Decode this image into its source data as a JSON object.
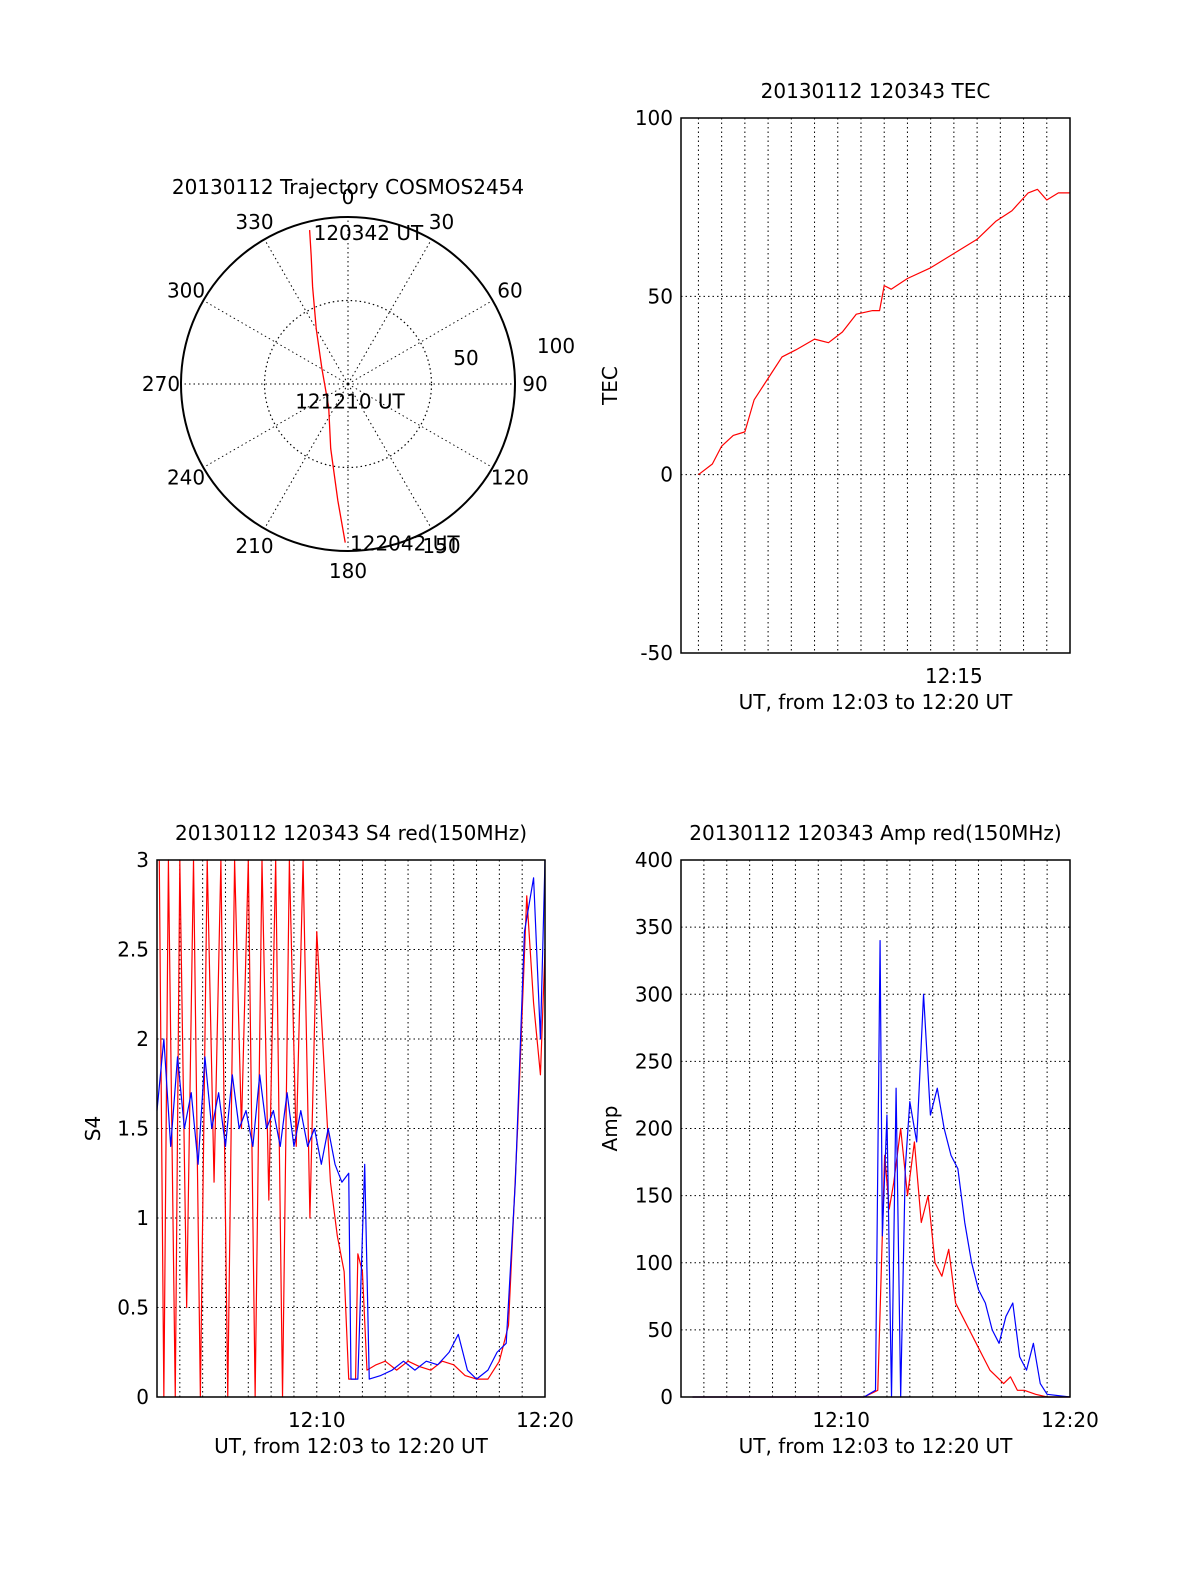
{
  "chart_data": [
    {
      "type": "polar",
      "title": "20130112 Trajectory COSMOS2454",
      "angle_labels": [
        "0",
        "30",
        "60",
        "90",
        "120",
        "150",
        "180",
        "210",
        "240",
        "270",
        "300",
        "330"
      ],
      "radius_labels": [
        "50",
        "100"
      ],
      "series": [
        {
          "color": "#ff0000",
          "points": [
            {
              "azimuth": 346,
              "zenith": 95
            },
            {
              "azimuth": 344,
              "zenith": 80
            },
            {
              "azimuth": 340,
              "zenith": 62
            },
            {
              "azimuth": 330,
              "zenith": 38
            },
            {
              "azimuth": 300,
              "zenith": 18
            },
            {
              "azimuth": 220,
              "zenith": 18
            },
            {
              "azimuth": 195,
              "zenith": 40
            },
            {
              "azimuth": 185,
              "zenith": 70
            },
            {
              "azimuth": 181,
              "zenith": 95
            }
          ]
        }
      ],
      "annotations": [
        {
          "text": "120342 UT",
          "azimuth": 346,
          "zenith": 95
        },
        {
          "text": "121210 UT",
          "azimuth": 230,
          "zenith": 10
        },
        {
          "text": "122042 UT",
          "azimuth": 180,
          "zenith": 95
        }
      ]
    },
    {
      "type": "line",
      "title": "20130112 120343 TEC",
      "ylabel": "TEC",
      "xlabel": "UT, from 12:03 to 12:20 UT",
      "ylim": [
        -50,
        100
      ],
      "yticks": [
        -50,
        0,
        50,
        100
      ],
      "xlim_min": [
        3.25,
        20
      ],
      "xticks": [
        {
          "value": 15,
          "label": "12:15"
        }
      ],
      "grid": true,
      "series": [
        {
          "color": "#ff0000",
          "points": [
            [
              4,
              0
            ],
            [
              4.6,
              3
            ],
            [
              5,
              8
            ],
            [
              5.5,
              11
            ],
            [
              6,
              12
            ],
            [
              6.4,
              21
            ],
            [
              7,
              27
            ],
            [
              7.6,
              33
            ],
            [
              8.2,
              35
            ],
            [
              9,
              38
            ],
            [
              9.6,
              37
            ],
            [
              10.2,
              40
            ],
            [
              10.8,
              45
            ],
            [
              11.5,
              46
            ],
            [
              11.8,
              46
            ],
            [
              12.0,
              53
            ],
            [
              12.3,
              52
            ],
            [
              13,
              55
            ],
            [
              14,
              58
            ],
            [
              15,
              62
            ],
            [
              16,
              66
            ],
            [
              16.8,
              71
            ],
            [
              17.5,
              74
            ],
            [
              18.2,
              79
            ],
            [
              18.6,
              80
            ],
            [
              19,
              77
            ],
            [
              19.5,
              79
            ],
            [
              20,
              79
            ]
          ]
        }
      ]
    },
    {
      "type": "line",
      "title": "20130112 120343 S4 red(150MHz)",
      "ylabel": "S4",
      "xlabel": "UT, from 12:03 to 12:20 UT",
      "ylim": [
        0,
        3
      ],
      "yticks": [
        "0",
        "0.5",
        "1",
        "1.5",
        "2",
        "2.5",
        "3"
      ],
      "xlim_min": [
        3,
        20
      ],
      "xticks": [
        {
          "value": 10,
          "label": "12:10"
        },
        {
          "value": 20,
          "label": "12:20"
        }
      ],
      "grid": true,
      "series": [
        {
          "color": "#ff0000",
          "points": [
            [
              3.1,
              3
            ],
            [
              3.3,
              0
            ],
            [
              3.5,
              3
            ],
            [
              3.8,
              0
            ],
            [
              4.0,
              3
            ],
            [
              4.3,
              0.5
            ],
            [
              4.6,
              3
            ],
            [
              4.9,
              0
            ],
            [
              5.2,
              3
            ],
            [
              5.5,
              1.2
            ],
            [
              5.8,
              3
            ],
            [
              6.1,
              0
            ],
            [
              6.4,
              3
            ],
            [
              6.7,
              1.5
            ],
            [
              7.0,
              3
            ],
            [
              7.3,
              0
            ],
            [
              7.6,
              3
            ],
            [
              7.9,
              1.1
            ],
            [
              8.2,
              3
            ],
            [
              8.5,
              0
            ],
            [
              8.8,
              3
            ],
            [
              9.1,
              1.4
            ],
            [
              9.4,
              3
            ],
            [
              9.7,
              1.0
            ],
            [
              10.0,
              2.6
            ],
            [
              10.3,
              1.9
            ],
            [
              10.6,
              1.2
            ],
            [
              10.9,
              0.9
            ],
            [
              11.2,
              0.7
            ],
            [
              11.4,
              0.1
            ],
            [
              11.7,
              0.1
            ],
            [
              11.8,
              0.8
            ],
            [
              12.0,
              0.7
            ],
            [
              12.2,
              0.15
            ],
            [
              12.6,
              0.18
            ],
            [
              13.0,
              0.2
            ],
            [
              13.5,
              0.15
            ],
            [
              14.0,
              0.2
            ],
            [
              14.5,
              0.17
            ],
            [
              15.0,
              0.15
            ],
            [
              15.5,
              0.2
            ],
            [
              16.0,
              0.18
            ],
            [
              16.5,
              0.12
            ],
            [
              17.0,
              0.1
            ],
            [
              17.5,
              0.1
            ],
            [
              18.0,
              0.2
            ],
            [
              18.4,
              0.4
            ],
            [
              18.8,
              1.5
            ],
            [
              19.2,
              2.8
            ],
            [
              19.5,
              2.2
            ],
            [
              19.8,
              1.8
            ],
            [
              20.0,
              2.5
            ]
          ]
        },
        {
          "color": "#0000ff",
          "points": [
            [
              3.0,
              1.6
            ],
            [
              3.3,
              2.0
            ],
            [
              3.6,
              1.4
            ],
            [
              3.9,
              1.9
            ],
            [
              4.2,
              1.5
            ],
            [
              4.5,
              1.7
            ],
            [
              4.8,
              1.3
            ],
            [
              5.1,
              1.9
            ],
            [
              5.4,
              1.5
            ],
            [
              5.7,
              1.7
            ],
            [
              6.0,
              1.4
            ],
            [
              6.3,
              1.8
            ],
            [
              6.6,
              1.5
            ],
            [
              6.9,
              1.6
            ],
            [
              7.2,
              1.4
            ],
            [
              7.5,
              1.8
            ],
            [
              7.8,
              1.5
            ],
            [
              8.1,
              1.6
            ],
            [
              8.4,
              1.4
            ],
            [
              8.7,
              1.7
            ],
            [
              9.0,
              1.4
            ],
            [
              9.3,
              1.6
            ],
            [
              9.6,
              1.4
            ],
            [
              9.9,
              1.5
            ],
            [
              10.2,
              1.3
            ],
            [
              10.5,
              1.5
            ],
            [
              10.8,
              1.3
            ],
            [
              11.1,
              1.2
            ],
            [
              11.4,
              1.25
            ],
            [
              11.5,
              0.1
            ],
            [
              11.8,
              0.1
            ],
            [
              11.9,
              0.5
            ],
            [
              12.1,
              1.3
            ],
            [
              12.3,
              0.1
            ],
            [
              12.8,
              0.12
            ],
            [
              13.3,
              0.15
            ],
            [
              13.8,
              0.2
            ],
            [
              14.3,
              0.15
            ],
            [
              14.8,
              0.2
            ],
            [
              15.3,
              0.18
            ],
            [
              15.8,
              0.25
            ],
            [
              16.2,
              0.35
            ],
            [
              16.6,
              0.15
            ],
            [
              17.0,
              0.1
            ],
            [
              17.5,
              0.15
            ],
            [
              17.9,
              0.25
            ],
            [
              18.3,
              0.3
            ],
            [
              18.7,
              1.2
            ],
            [
              19.1,
              2.6
            ],
            [
              19.5,
              2.9
            ],
            [
              19.8,
              2.0
            ],
            [
              20.0,
              3.0
            ]
          ]
        }
      ]
    },
    {
      "type": "line",
      "title": "20130112 120343 Amp red(150MHz)",
      "ylabel": "Amp",
      "xlabel": "UT, from 12:03 to 12:20 UT",
      "ylim": [
        0,
        400
      ],
      "yticks": [
        0,
        50,
        100,
        150,
        200,
        250,
        300,
        350,
        400
      ],
      "xlim_min": [
        3,
        20
      ],
      "xticks": [
        {
          "value": 10,
          "label": "12:10"
        },
        {
          "value": 20,
          "label": "12:20"
        }
      ],
      "grid": true,
      "series": [
        {
          "color": "#ff0000",
          "points": [
            [
              3.5,
              0
            ],
            [
              11.0,
              0
            ],
            [
              11.6,
              5
            ],
            [
              11.9,
              180
            ],
            [
              12.1,
              140
            ],
            [
              12.3,
              160
            ],
            [
              12.6,
              200
            ],
            [
              12.9,
              150
            ],
            [
              13.2,
              190
            ],
            [
              13.5,
              130
            ],
            [
              13.8,
              150
            ],
            [
              14.1,
              100
            ],
            [
              14.4,
              90
            ],
            [
              14.7,
              110
            ],
            [
              15.0,
              70
            ],
            [
              15.3,
              60
            ],
            [
              15.6,
              50
            ],
            [
              15.9,
              40
            ],
            [
              16.2,
              30
            ],
            [
              16.5,
              20
            ],
            [
              16.8,
              15
            ],
            [
              17.1,
              10
            ],
            [
              17.4,
              15
            ],
            [
              17.7,
              5
            ],
            [
              18.0,
              5
            ],
            [
              18.5,
              2
            ],
            [
              19.0,
              0
            ],
            [
              20.0,
              0
            ]
          ]
        },
        {
          "color": "#0000ff",
          "points": [
            [
              3.5,
              0
            ],
            [
              11.0,
              0
            ],
            [
              11.5,
              5
            ],
            [
              11.7,
              340
            ],
            [
              11.8,
              120
            ],
            [
              12.0,
              210
            ],
            [
              12.2,
              0
            ],
            [
              12.4,
              230
            ],
            [
              12.6,
              0
            ],
            [
              12.8,
              170
            ],
            [
              13.0,
              220
            ],
            [
              13.3,
              190
            ],
            [
              13.6,
              300
            ],
            [
              13.9,
              210
            ],
            [
              14.2,
              230
            ],
            [
              14.5,
              200
            ],
            [
              14.8,
              180
            ],
            [
              15.1,
              170
            ],
            [
              15.4,
              130
            ],
            [
              15.7,
              100
            ],
            [
              16.0,
              80
            ],
            [
              16.3,
              70
            ],
            [
              16.6,
              50
            ],
            [
              16.9,
              40
            ],
            [
              17.2,
              60
            ],
            [
              17.5,
              70
            ],
            [
              17.8,
              30
            ],
            [
              18.1,
              20
            ],
            [
              18.4,
              40
            ],
            [
              18.7,
              10
            ],
            [
              19.0,
              2
            ],
            [
              20.0,
              0
            ]
          ]
        }
      ]
    }
  ]
}
